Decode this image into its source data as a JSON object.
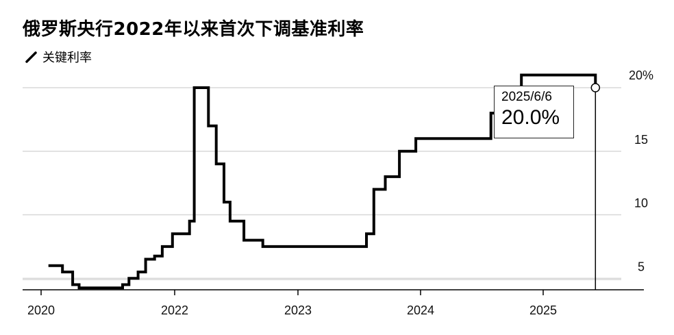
{
  "title": "俄罗斯央行2022年以来首次下调基准利率",
  "legend": {
    "label": "关键利率"
  },
  "tooltip": {
    "date": "2025/6/6",
    "value": "20.0%"
  },
  "chart_data": {
    "type": "line",
    "title": "俄罗斯央行2022年以来首次下调基准利率",
    "series": [
      {
        "name": "关键利率",
        "step": true,
        "x": [
          "2020-02-10",
          "2020-04-27",
          "2020-06-22",
          "2020-07-27",
          "2021-03-22",
          "2021-04-26",
          "2021-06-15",
          "2021-07-26",
          "2021-09-13",
          "2021-10-25",
          "2021-12-20",
          "2022-02-14",
          "2022-02-28",
          "2022-04-11",
          "2022-05-04",
          "2022-05-27",
          "2022-06-14",
          "2022-07-25",
          "2022-09-19",
          "2023-07-24",
          "2023-08-15",
          "2023-09-18",
          "2023-10-30",
          "2023-12-18",
          "2024-07-29",
          "2024-10-28",
          "2025-06-06"
        ],
        "values": [
          6.0,
          5.5,
          4.5,
          4.25,
          4.5,
          5.0,
          5.5,
          6.5,
          6.75,
          7.5,
          8.5,
          9.5,
          20.0,
          17.0,
          14.0,
          11.0,
          9.5,
          8.0,
          7.5,
          8.5,
          12.0,
          13.0,
          15.0,
          16.0,
          18.0,
          21.0,
          20.0
        ]
      }
    ],
    "xticks": [
      "2020",
      "2022",
      "2023",
      "2024",
      "2025"
    ],
    "yticks": [
      "5",
      "10",
      "15",
      "20%"
    ],
    "ylim": [
      4,
      21
    ],
    "grid": true,
    "legend_position": "top-left"
  },
  "colors": {
    "line": "#000000",
    "grid": "#d8d8d8",
    "axis": "#000000"
  }
}
